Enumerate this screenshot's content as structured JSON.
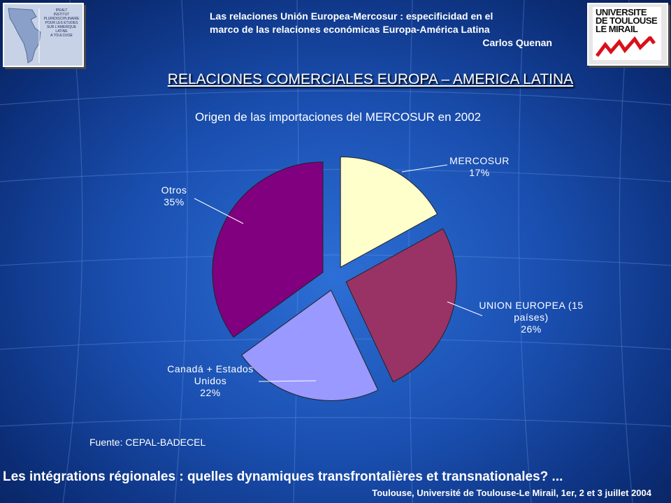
{
  "header": {
    "line1": "Las relaciones Unión Europea-Mercosur : especificidad en el",
    "line2": "marco de las relaciones económicas Europa-América Latina",
    "author": "Carlos Quenan"
  },
  "logos": {
    "left_text": [
      "IPEALT",
      "INSTITUT",
      "PLURIDISCIPLINAIRE",
      "POUR LES ETUDES",
      "SUR L'AMERIQUE",
      "LATINE",
      "A TOULOUSE"
    ],
    "right_text": [
      "UNIVERSITE",
      "DE TOULOUSE",
      "LE MIRAIL"
    ]
  },
  "slide_title": "RELACIONES COMERCIALES EUROPA – AMERICA LATINA",
  "chart_data": {
    "type": "pie",
    "title": "Origen de las importaciones del MERCOSUR en 2002",
    "exploded": true,
    "slices": [
      {
        "name": "MERCOSUR",
        "value": 17,
        "label": "MERCOSUR",
        "pct": "17%",
        "color": "#ffffcc"
      },
      {
        "name": "UNION EUROPEA (15 países)",
        "value": 26,
        "label_lines": [
          "UNION EUROPEA (15",
          "países)"
        ],
        "pct": "26%",
        "color": "#993366"
      },
      {
        "name": "Canadá + Estados Unidos",
        "value": 22,
        "label_lines": [
          "Canadá + Estados",
          "Unidos"
        ],
        "pct": "22%",
        "color": "#9999ff"
      },
      {
        "name": "Otros",
        "value": 35,
        "label": "Otros",
        "pct": "35%",
        "color": "#800080"
      }
    ]
  },
  "source": "Fuente: CEPAL-BADECEL",
  "footer": {
    "main": "Les intégrations régionales : quelles dynamiques transfrontalières et transnationales? ...",
    "sub": "Toulouse, Université de Toulouse-Le Mirail, 1er, 2 et 3 juillet 2004"
  }
}
